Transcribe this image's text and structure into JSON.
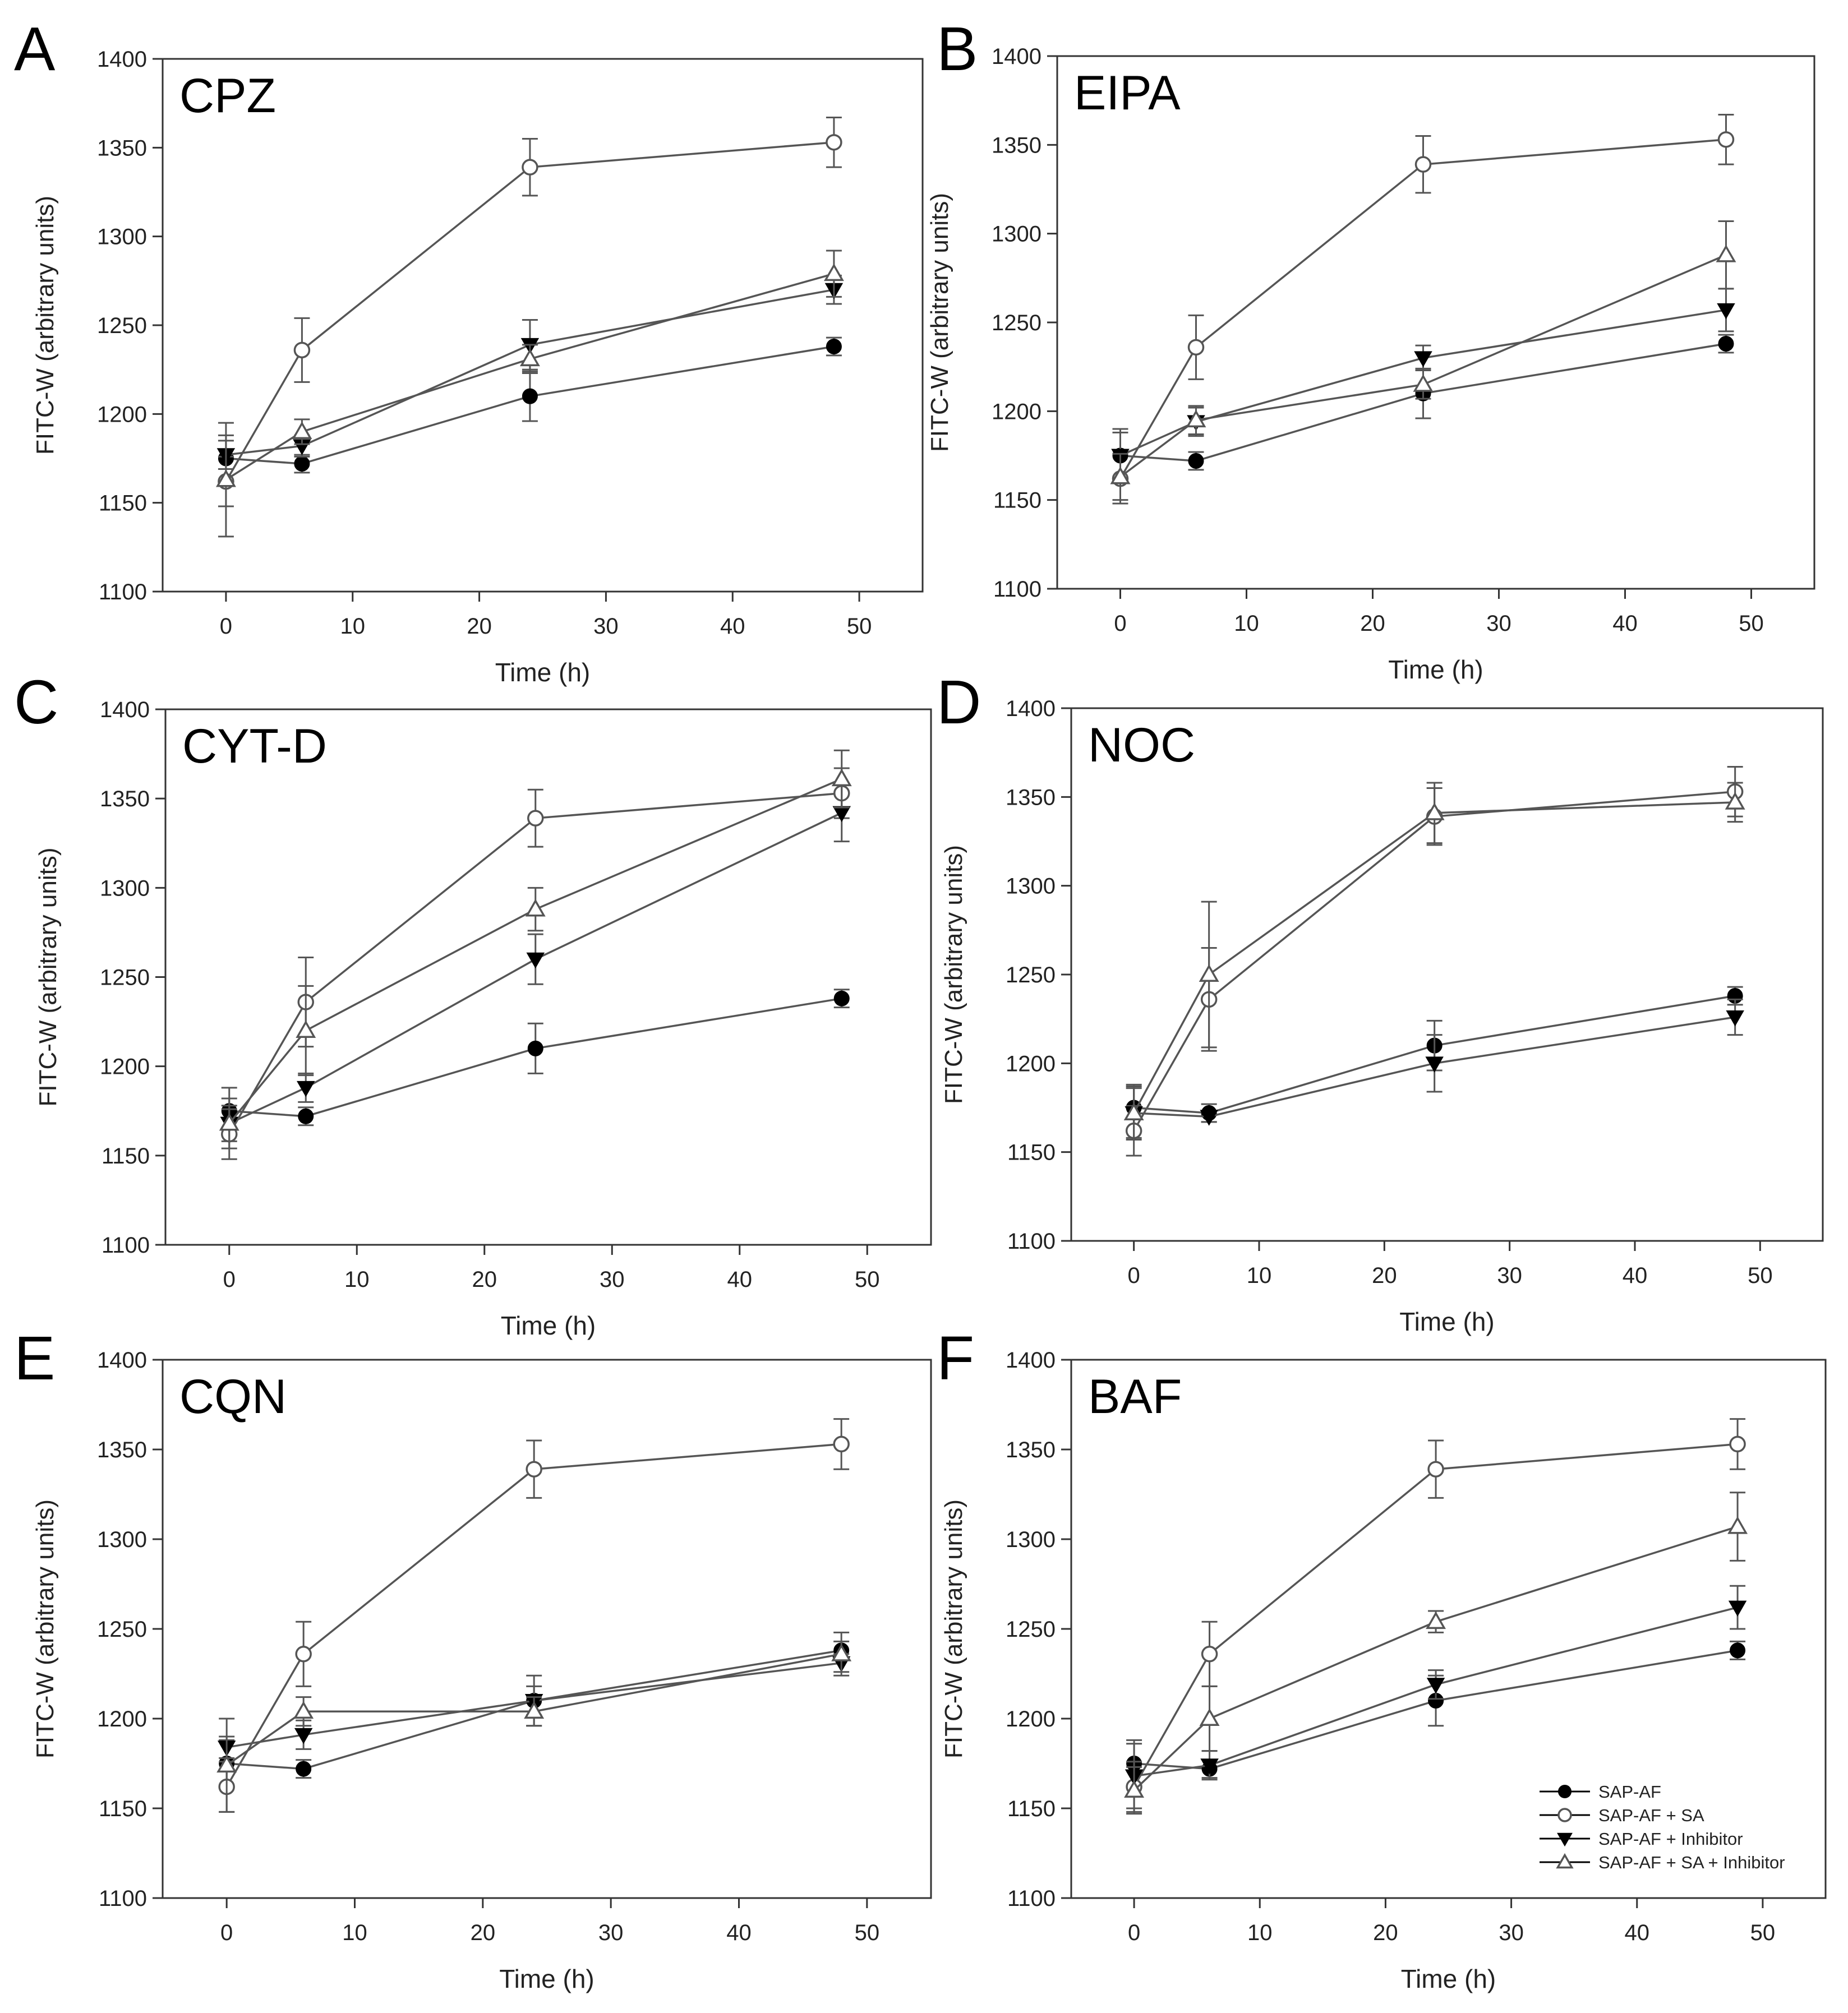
{
  "figure": {
    "yaxis_label": "FITC-W (arbitrary units)",
    "xaxis_label": "Time (h)",
    "legend": [
      {
        "name": "SAP-AF",
        "marker": "filled-circle"
      },
      {
        "name": "SAP-AF + SA",
        "marker": "open-circle"
      },
      {
        "name": "SAP-AF + Inhibitor",
        "marker": "filled-triangle-down"
      },
      {
        "name": "SAP-AF + SA + Inhibitor",
        "marker": "open-triangle-up"
      }
    ],
    "colors": {
      "line": "#555555",
      "fill": "#000000",
      "axis": "#333333",
      "background": "#ffffff"
    }
  },
  "chart_data": [
    {
      "panel": "A",
      "title": "CPZ",
      "type": "line",
      "xlabel": "Time (h)",
      "ylabel": "FITC-W (arbitrary units)",
      "xlim": [
        -5,
        55
      ],
      "ylim": [
        1100,
        1400
      ],
      "xticks": [
        0,
        10,
        20,
        30,
        40,
        50
      ],
      "yticks": [
        1100,
        1150,
        1200,
        1250,
        1300,
        1350,
        1400
      ],
      "x": [
        0,
        6,
        24,
        48
      ],
      "series": [
        {
          "name": "SAP-AF",
          "marker": "filled-circle",
          "values": [
            1175,
            1172,
            1210,
            1238
          ],
          "err": [
            13,
            5,
            14,
            5
          ]
        },
        {
          "name": "SAP-AF + SA",
          "marker": "open-circle",
          "values": [
            1162,
            1236,
            1339,
            1353
          ],
          "err": [
            14,
            18,
            16,
            14
          ]
        },
        {
          "name": "SAP-AF + Inhibitor",
          "marker": "filled-triangle-down",
          "values": [
            1177,
            1182,
            1239,
            1270
          ],
          "err": [
            8,
            6,
            14,
            8
          ]
        },
        {
          "name": "SAP-AF + SA + Inhibitor",
          "marker": "open-triangle-up",
          "values": [
            1163,
            1190,
            1231,
            1279
          ],
          "err": [
            32,
            7,
            8,
            13
          ]
        }
      ]
    },
    {
      "panel": "B",
      "title": "EIPA",
      "type": "line",
      "xlabel": "Time (h)",
      "ylabel": "FITC-W (arbitrary units)",
      "xlim": [
        -5,
        55
      ],
      "ylim": [
        1100,
        1400
      ],
      "xticks": [
        0,
        10,
        20,
        30,
        40,
        50
      ],
      "yticks": [
        1100,
        1150,
        1200,
        1250,
        1300,
        1350,
        1400
      ],
      "x": [
        0,
        6,
        24,
        48
      ],
      "series": [
        {
          "name": "SAP-AF",
          "marker": "filled-circle",
          "values": [
            1175,
            1172,
            1210,
            1238
          ],
          "err": [
            13,
            5,
            14,
            5
          ]
        },
        {
          "name": "SAP-AF + SA",
          "marker": "open-circle",
          "values": [
            1162,
            1236,
            1339,
            1353
          ],
          "err": [
            14,
            18,
            16,
            14
          ]
        },
        {
          "name": "SAP-AF + Inhibitor",
          "marker": "filled-triangle-down",
          "values": [
            1175,
            1194,
            1230,
            1257
          ],
          "err": [
            15,
            8,
            7,
            12
          ]
        },
        {
          "name": "SAP-AF + SA + Inhibitor",
          "marker": "open-triangle-up",
          "values": [
            1163,
            1195,
            1215,
            1288
          ],
          "err": [
            13,
            8,
            8,
            19
          ]
        }
      ]
    },
    {
      "panel": "C",
      "title": "CYT-D",
      "type": "line",
      "xlabel": "Time (h)",
      "ylabel": "FITC-W (arbitrary units)",
      "xlim": [
        -5,
        55
      ],
      "ylim": [
        1100,
        1400
      ],
      "xticks": [
        0,
        10,
        20,
        30,
        40,
        50
      ],
      "yticks": [
        1100,
        1150,
        1200,
        1250,
        1300,
        1350,
        1400
      ],
      "x": [
        0,
        6,
        24,
        48
      ],
      "series": [
        {
          "name": "SAP-AF",
          "marker": "filled-circle",
          "values": [
            1175,
            1172,
            1210,
            1238
          ],
          "err": [
            13,
            5,
            14,
            5
          ]
        },
        {
          "name": "SAP-AF + SA",
          "marker": "open-circle",
          "values": [
            1162,
            1236,
            1339,
            1353
          ],
          "err": [
            14,
            25,
            16,
            14
          ]
        },
        {
          "name": "SAP-AF + Inhibitor",
          "marker": "filled-triangle-down",
          "values": [
            1168,
            1188,
            1260,
            1342
          ],
          "err": [
            10,
            8,
            14,
            16
          ]
        },
        {
          "name": "SAP-AF + SA + Inhibitor",
          "marker": "open-triangle-up",
          "values": [
            1168,
            1220,
            1288,
            1361
          ],
          "err": [
            14,
            25,
            12,
            16
          ]
        }
      ]
    },
    {
      "panel": "D",
      "title": "NOC",
      "type": "line",
      "xlabel": "Time (h)",
      "ylabel": "FITC-W (arbitrary units)",
      "xlim": [
        -5,
        55
      ],
      "ylim": [
        1100,
        1400
      ],
      "xticks": [
        0,
        10,
        20,
        30,
        40,
        50
      ],
      "yticks": [
        1100,
        1150,
        1200,
        1250,
        1300,
        1350,
        1400
      ],
      "x": [
        0,
        6,
        24,
        48
      ],
      "series": [
        {
          "name": "SAP-AF",
          "marker": "filled-circle",
          "values": [
            1175,
            1172,
            1210,
            1238
          ],
          "err": [
            13,
            5,
            14,
            5
          ]
        },
        {
          "name": "SAP-AF + SA",
          "marker": "open-circle",
          "values": [
            1162,
            1236,
            1339,
            1353
          ],
          "err": [
            14,
            29,
            16,
            14
          ]
        },
        {
          "name": "SAP-AF + Inhibitor",
          "marker": "filled-triangle-down",
          "values": [
            1172,
            1170,
            1200,
            1226
          ],
          "err": [
            15,
            3,
            16,
            10
          ]
        },
        {
          "name": "SAP-AF + SA + Inhibitor",
          "marker": "open-triangle-up",
          "values": [
            1172,
            1250,
            1341,
            1347
          ],
          "err": [
            14,
            41,
            17,
            11
          ]
        }
      ]
    },
    {
      "panel": "E",
      "title": "CQN",
      "type": "line",
      "xlabel": "Time (h)",
      "ylabel": "FITC-W (arbitrary units)",
      "xlim": [
        -5,
        55
      ],
      "ylim": [
        1100,
        1400
      ],
      "xticks": [
        0,
        10,
        20,
        30,
        40,
        50
      ],
      "yticks": [
        1100,
        1150,
        1200,
        1250,
        1300,
        1350,
        1400
      ],
      "x": [
        0,
        6,
        24,
        48
      ],
      "series": [
        {
          "name": "SAP-AF",
          "marker": "filled-circle",
          "values": [
            1175,
            1172,
            1210,
            1238
          ],
          "err": [
            13,
            5,
            14,
            5
          ]
        },
        {
          "name": "SAP-AF + SA",
          "marker": "open-circle",
          "values": [
            1162,
            1236,
            1339,
            1353
          ],
          "err": [
            14,
            18,
            16,
            14
          ]
        },
        {
          "name": "SAP-AF + Inhibitor",
          "marker": "filled-triangle-down",
          "values": [
            1184,
            1191,
            1210,
            1231
          ],
          "err": [
            6,
            8,
            8,
            5
          ]
        },
        {
          "name": "SAP-AF + SA + Inhibitor",
          "marker": "open-triangle-up",
          "values": [
            1174,
            1204,
            1204,
            1236
          ],
          "err": [
            26,
            8,
            8,
            12
          ]
        }
      ]
    },
    {
      "panel": "F",
      "title": "BAF",
      "type": "line",
      "xlabel": "Time (h)",
      "ylabel": "FITC-W (arbitrary units)",
      "xlim": [
        -5,
        55
      ],
      "ylim": [
        1100,
        1400
      ],
      "xticks": [
        0,
        10,
        20,
        30,
        40,
        50
      ],
      "yticks": [
        1100,
        1150,
        1200,
        1250,
        1300,
        1350,
        1400
      ],
      "x": [
        0,
        6,
        24,
        48
      ],
      "legend": "bottom-right",
      "series": [
        {
          "name": "SAP-AF",
          "marker": "filled-circle",
          "values": [
            1175,
            1172,
            1210,
            1238
          ],
          "err": [
            13,
            5,
            14,
            5
          ]
        },
        {
          "name": "SAP-AF + SA",
          "marker": "open-circle",
          "values": [
            1162,
            1236,
            1339,
            1353
          ],
          "err": [
            14,
            18,
            16,
            14
          ]
        },
        {
          "name": "SAP-AF + Inhibitor",
          "marker": "filled-triangle-down",
          "values": [
            1168,
            1174,
            1219,
            1262
          ],
          "err": [
            18,
            8,
            8,
            12
          ]
        },
        {
          "name": "SAP-AF + SA + Inhibitor",
          "marker": "open-triangle-up",
          "values": [
            1160,
            1200,
            1254,
            1307
          ],
          "err": [
            13,
            18,
            6,
            19
          ]
        }
      ]
    }
  ]
}
